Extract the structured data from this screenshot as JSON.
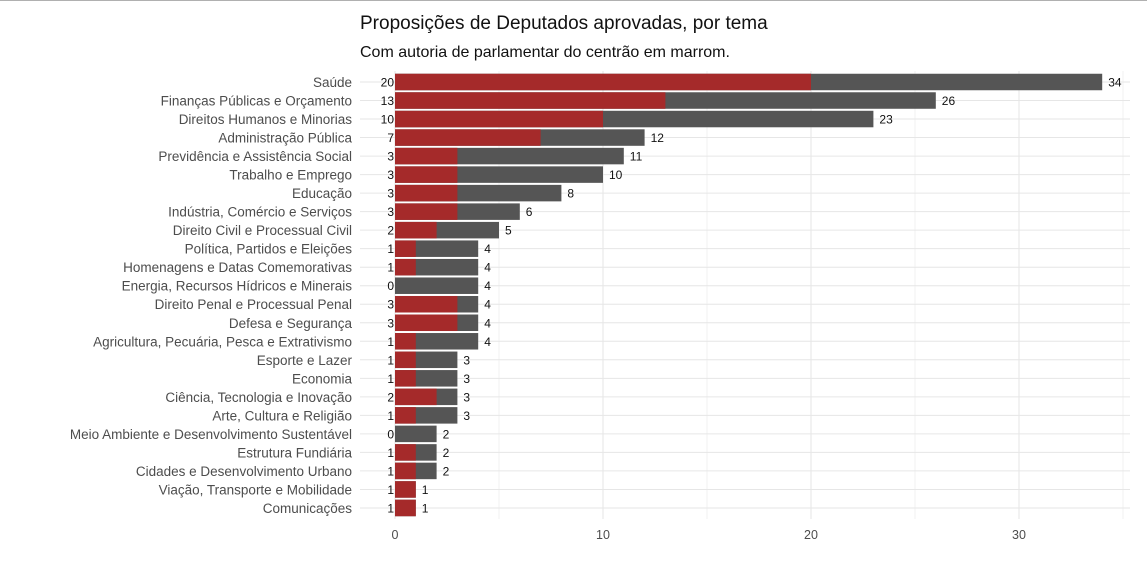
{
  "chart_data": {
    "type": "bar",
    "orientation": "horizontal",
    "title": "Proposições de Deputados aprovadas, por tema",
    "subtitle": "Com autoria de parlamentar do centrão em marrom.",
    "xlabel": "",
    "ylabel": "",
    "xlim": [
      0,
      35
    ],
    "xticks": [
      0,
      10,
      20,
      30
    ],
    "grid": true,
    "categories": [
      "Saúde",
      "Finanças Públicas e Orçamento",
      "Direitos Humanos e Minorias",
      "Administração Pública",
      "Previdência e Assistência Social",
      "Trabalho e Emprego",
      "Educação",
      "Indústria, Comércio e Serviços",
      "Direito Civil e Processual Civil",
      "Política, Partidos e Eleições",
      "Homenagens e Datas Comemorativas",
      "Energia, Recursos Hídricos e Minerais",
      "Direito Penal e Processual Penal",
      "Defesa e Segurança",
      "Agricultura, Pecuária, Pesca e Extrativismo",
      "Esporte e Lazer",
      "Economia",
      "Ciência, Tecnologia e Inovação",
      "Arte, Cultura e Religião",
      "Meio Ambiente e Desenvolvimento Sustentável",
      "Estrutura Fundiária",
      "Cidades e Desenvolvimento Urbano",
      "Viação, Transporte e Mobilidade",
      "Comunicações"
    ],
    "series": [
      {
        "values": [
          34,
          26,
          23,
          12,
          11,
          10,
          8,
          6,
          5,
          4,
          4,
          4,
          4,
          4,
          4,
          3,
          3,
          3,
          3,
          2,
          2,
          2,
          1,
          1
        ],
        "color": "#555555"
      },
      {
        "values": [
          20,
          13,
          10,
          7,
          3,
          3,
          3,
          3,
          2,
          1,
          1,
          0,
          3,
          3,
          1,
          1,
          1,
          2,
          1,
          0,
          1,
          1,
          1,
          1
        ],
        "color": "#a52a2a"
      }
    ]
  }
}
